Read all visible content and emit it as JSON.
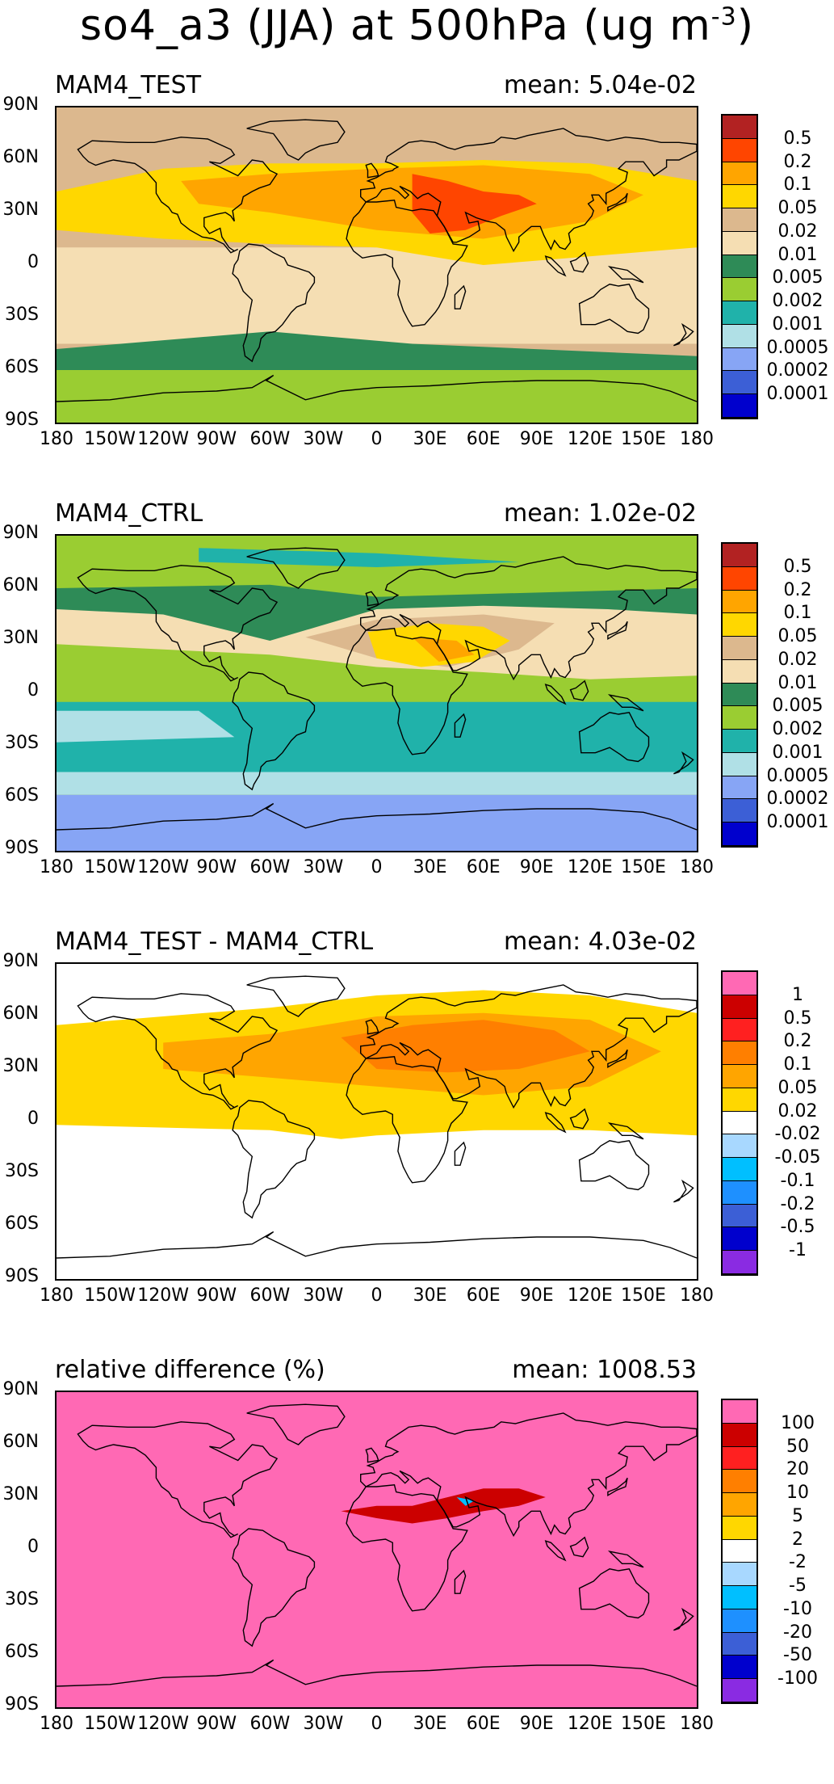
{
  "figure": {
    "title_main": "so4_a3 (JJA) at 500hPa (ug m",
    "title_exp": "-3",
    "title_close": ")"
  },
  "axes": {
    "lat_labels": [
      "90N",
      "60N",
      "30N",
      "0",
      "30S",
      "60S",
      "90S"
    ],
    "lon_labels": [
      "180",
      "150W",
      "120W",
      "90W",
      "60W",
      "30W",
      "0",
      "30E",
      "60E",
      "90E",
      "120E",
      "150E",
      "180"
    ]
  },
  "panels": [
    {
      "name": "MAM4_TEST",
      "mean": "mean: 5.04e-02",
      "background": "#dcb88e",
      "colorbar": {
        "labels": [
          "0.5",
          "0.2",
          "0.1",
          "0.05",
          "0.02",
          "0.01",
          "0.005",
          "0.002",
          "0.001",
          "0.0005",
          "0.0002",
          "0.0001"
        ],
        "colors": [
          "#b22222",
          "#ff4500",
          "#ffa500",
          "#ffd700",
          "#dcb88e",
          "#f5deb3",
          "#2e8b57",
          "#9acd32",
          "#20b2aa",
          "#b0e0e6",
          "#87a5f5",
          "#3c5fd6",
          "#0000cd"
        ]
      }
    },
    {
      "name": "MAM4_CTRL",
      "mean": "mean: 1.02e-02",
      "background": "#9acd32",
      "colorbar": {
        "labels": [
          "0.5",
          "0.2",
          "0.1",
          "0.05",
          "0.02",
          "0.01",
          "0.005",
          "0.002",
          "0.001",
          "0.0005",
          "0.0002",
          "0.0001"
        ],
        "colors": [
          "#b22222",
          "#ff4500",
          "#ffa500",
          "#ffd700",
          "#dcb88e",
          "#f5deb3",
          "#2e8b57",
          "#9acd32",
          "#20b2aa",
          "#b0e0e6",
          "#87a5f5",
          "#3c5fd6",
          "#0000cd"
        ]
      }
    },
    {
      "name": "MAM4_TEST - MAM4_CTRL",
      "mean": "mean: 4.03e-02",
      "background": "#ffffff",
      "colorbar": {
        "labels": [
          "1",
          "0.5",
          "0.2",
          "0.1",
          "0.05",
          "0.02",
          "-0.02",
          "-0.05",
          "-0.1",
          "-0.2",
          "-0.5",
          "-1"
        ],
        "colors": [
          "#ff69b4",
          "#cc0000",
          "#ff2020",
          "#ff7f00",
          "#ffa500",
          "#ffd700",
          "#ffffff",
          "#a8d8ff",
          "#00bfff",
          "#1e90ff",
          "#3c5fd6",
          "#0000cd",
          "#8a2be2"
        ]
      }
    },
    {
      "name": "relative difference (%)",
      "mean": "mean: 1008.53",
      "background": "#ff69b4",
      "colorbar": {
        "labels": [
          "100",
          "50",
          "20",
          "10",
          "5",
          "2",
          "-2",
          "-5",
          "-10",
          "-20",
          "-50",
          "-100"
        ],
        "colors": [
          "#ff69b4",
          "#cc0000",
          "#ff2020",
          "#ff7f00",
          "#ffa500",
          "#ffd700",
          "#ffffff",
          "#a8d8ff",
          "#00bfff",
          "#1e90ff",
          "#3c5fd6",
          "#0000cd",
          "#8a2be2"
        ]
      }
    }
  ]
}
